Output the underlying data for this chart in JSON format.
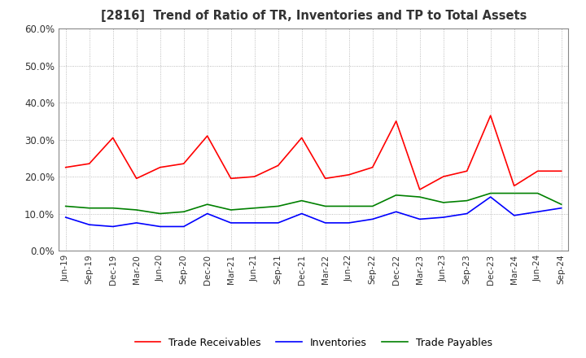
{
  "title": "[2816]  Trend of Ratio of TR, Inventories and TP to Total Assets",
  "x_labels": [
    "Jun-19",
    "Sep-19",
    "Dec-19",
    "Mar-20",
    "Jun-20",
    "Sep-20",
    "Dec-20",
    "Mar-21",
    "Jun-21",
    "Sep-21",
    "Dec-21",
    "Mar-22",
    "Jun-22",
    "Sep-22",
    "Dec-22",
    "Mar-23",
    "Jun-23",
    "Sep-23",
    "Dec-23",
    "Mar-24",
    "Jun-24",
    "Sep-24"
  ],
  "trade_receivables": [
    0.225,
    0.235,
    0.305,
    0.195,
    0.225,
    0.235,
    0.31,
    0.195,
    0.2,
    0.23,
    0.305,
    0.195,
    0.205,
    0.225,
    0.35,
    0.165,
    0.2,
    0.215,
    0.365,
    0.175,
    0.215,
    0.215
  ],
  "inventories": [
    0.09,
    0.07,
    0.065,
    0.075,
    0.065,
    0.065,
    0.1,
    0.075,
    0.075,
    0.075,
    0.1,
    0.075,
    0.075,
    0.085,
    0.105,
    0.085,
    0.09,
    0.1,
    0.145,
    0.095,
    0.105,
    0.115
  ],
  "trade_payables": [
    0.12,
    0.115,
    0.115,
    0.11,
    0.1,
    0.105,
    0.125,
    0.11,
    0.115,
    0.12,
    0.135,
    0.12,
    0.12,
    0.12,
    0.15,
    0.145,
    0.13,
    0.135,
    0.155,
    0.155,
    0.155,
    0.125
  ],
  "ylim": [
    0.0,
    0.6
  ],
  "yticks": [
    0.0,
    0.1,
    0.2,
    0.3,
    0.4,
    0.5,
    0.6
  ],
  "color_tr": "#FF0000",
  "color_inv": "#0000FF",
  "color_tp": "#008000",
  "legend_labels": [
    "Trade Receivables",
    "Inventories",
    "Trade Payables"
  ],
  "background_color": "#FFFFFF",
  "grid_color": "#AAAAAA"
}
